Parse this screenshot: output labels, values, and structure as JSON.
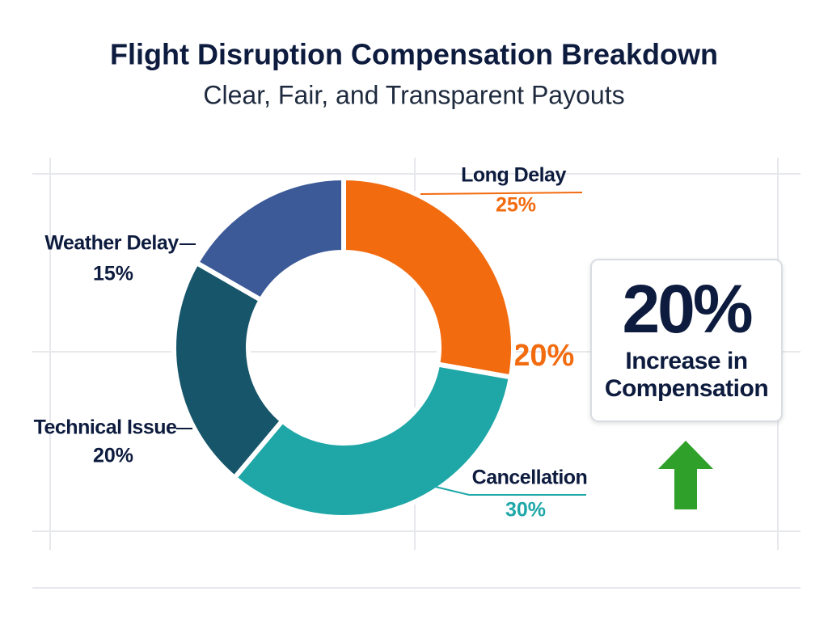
{
  "chart_data": {
    "type": "donut",
    "title": "Flight Disruption Compensation Breakdown",
    "subtitle": "Clear, Fair, and Transparent Payouts",
    "categories": [
      "Long Delay",
      "Cancellation",
      "Technical Issue",
      "Weather Delay"
    ],
    "values": [
      25,
      30,
      20,
      15
    ],
    "value_labels": [
      "25%",
      "30%",
      "20%",
      "15%"
    ],
    "colors": [
      "#f26b0f",
      "#1fa7a8",
      "#17566a",
      "#3c5a97"
    ],
    "annotation": "+20%",
    "callout": {
      "value": "20%",
      "text": "Increase in Compensation"
    }
  }
}
